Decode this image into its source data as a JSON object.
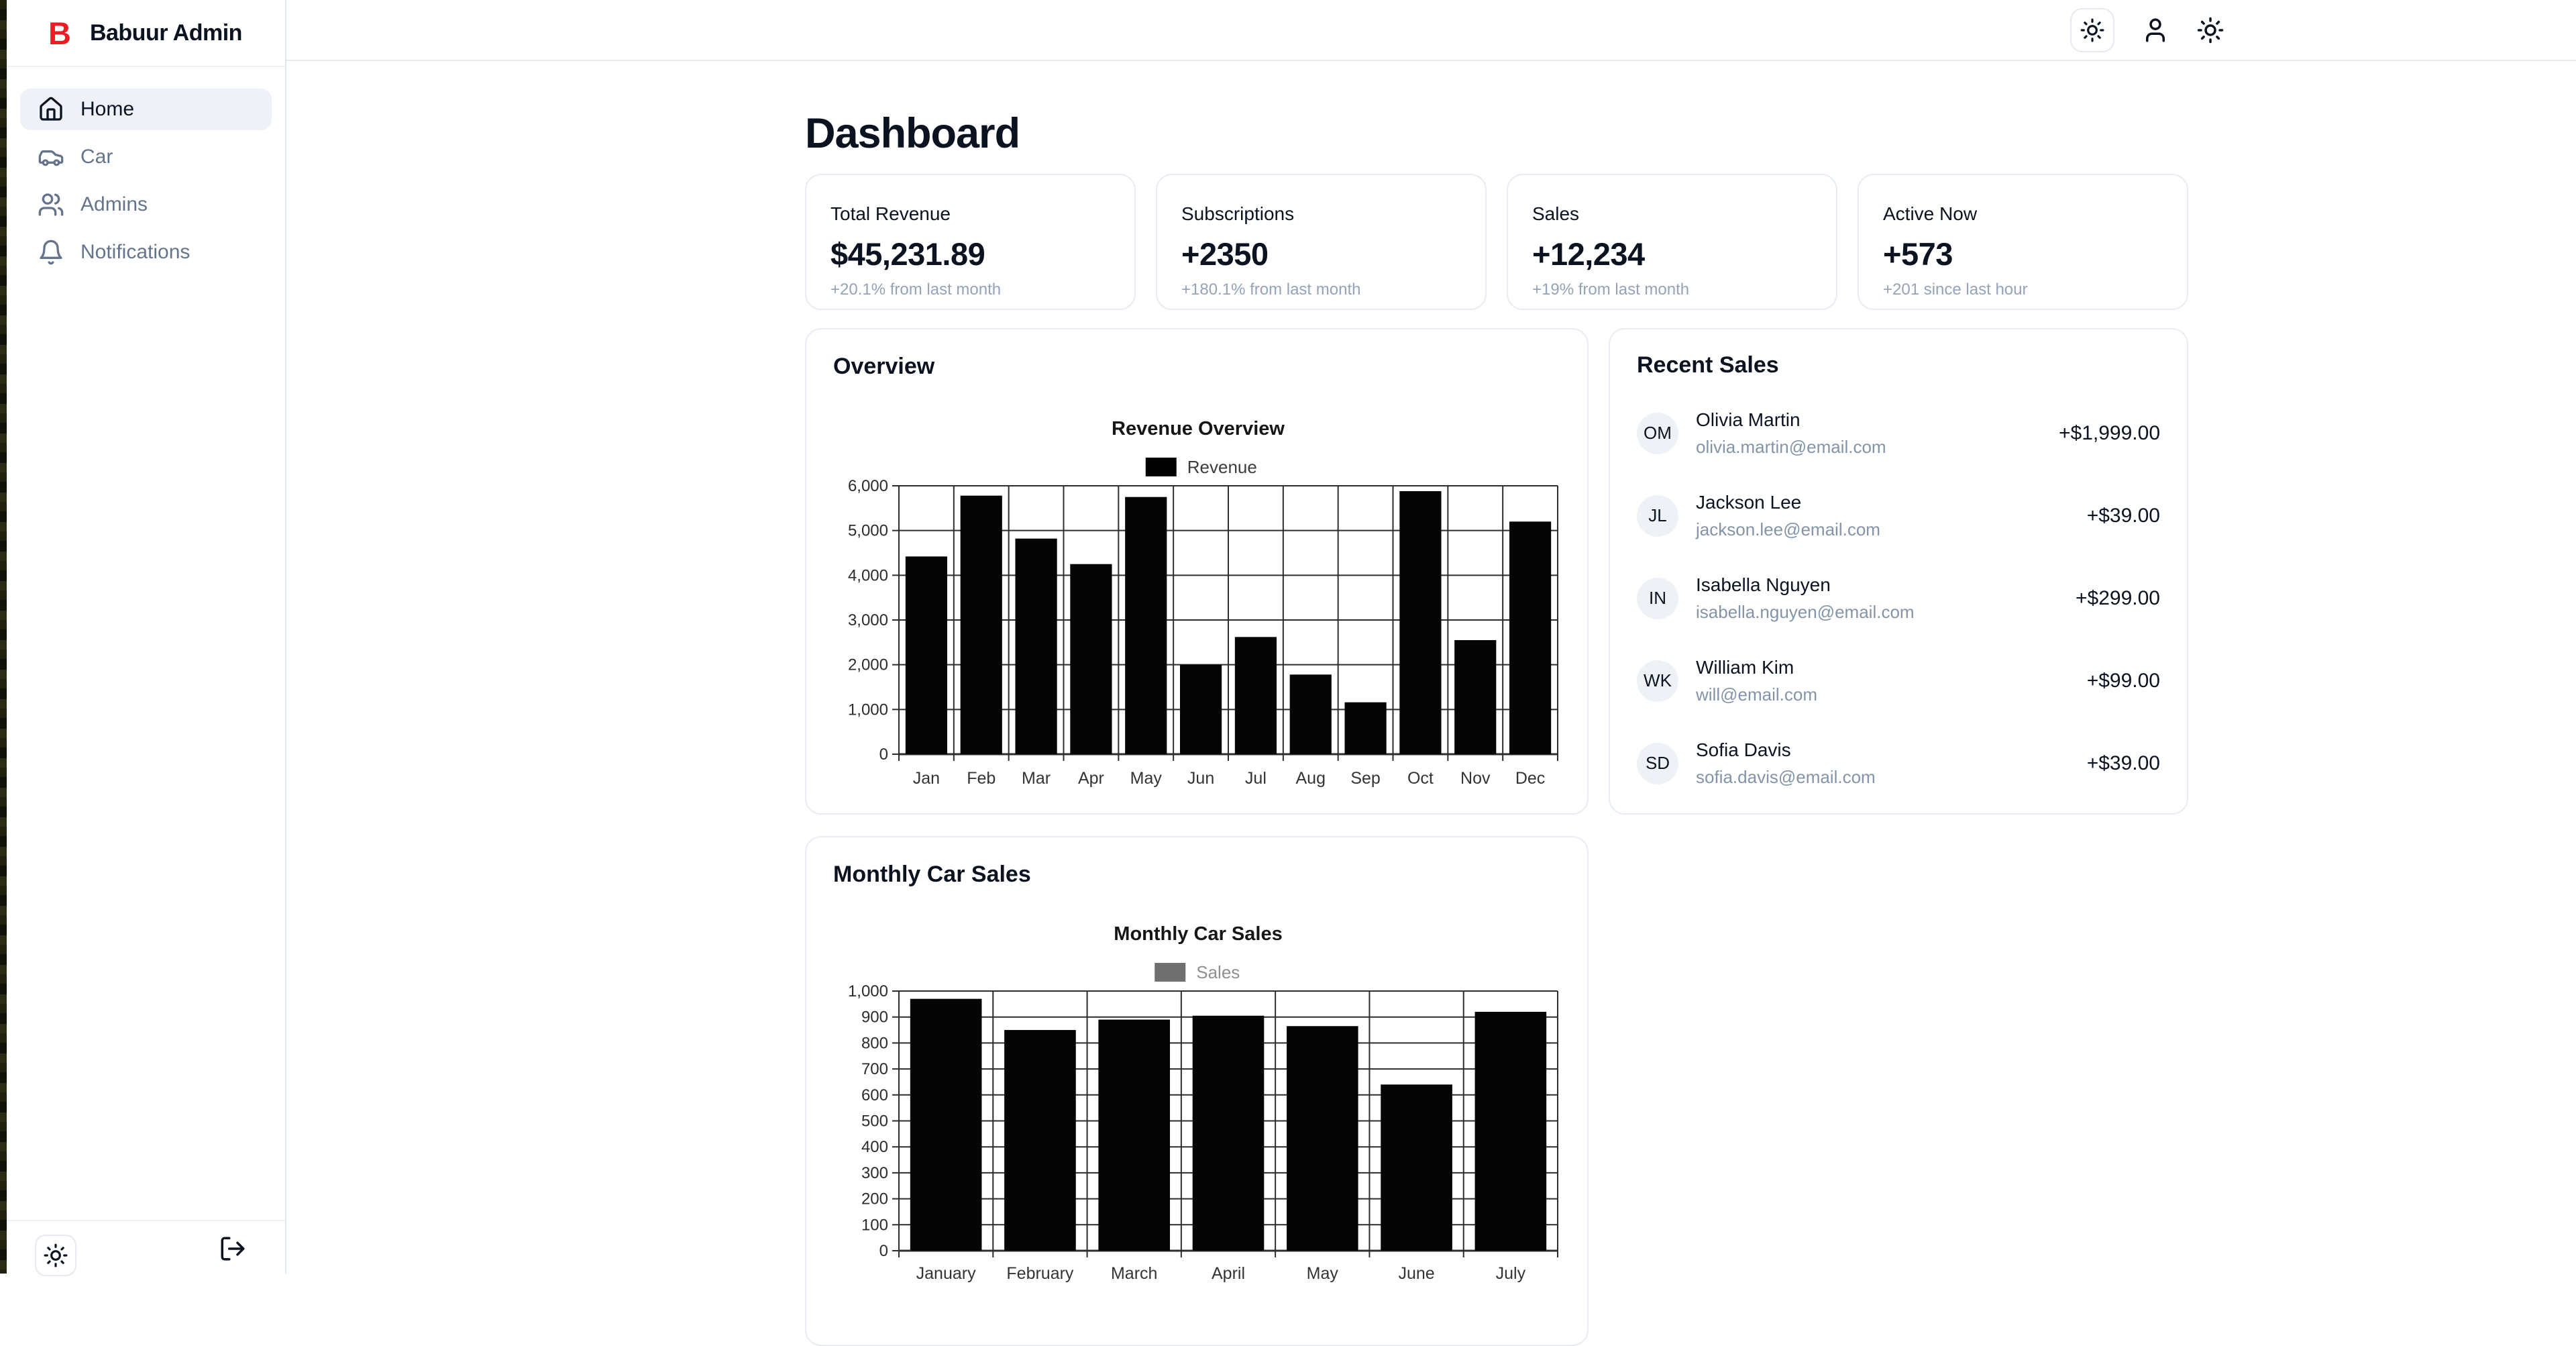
{
  "brand": {
    "logo_letter": "B",
    "name": "Babuur Admin"
  },
  "header": {
    "icons": [
      {
        "name": "sun-icon",
        "type": "theme-toggle-button"
      },
      {
        "name": "user-icon",
        "type": "profile-button"
      },
      {
        "name": "sun-icon",
        "type": "theme-button"
      }
    ]
  },
  "sidebar": {
    "items": [
      {
        "label": "Home",
        "icon": "home-icon",
        "active": true
      },
      {
        "label": "Car",
        "icon": "car-icon",
        "active": false
      },
      {
        "label": "Admins",
        "icon": "users-icon",
        "active": false
      },
      {
        "label": "Notifications",
        "icon": "bell-icon",
        "active": false
      }
    ],
    "footer": {
      "theme_icon": "sun-icon",
      "logout_icon": "log-out-icon"
    }
  },
  "main": {
    "title": "Dashboard",
    "stats": [
      {
        "label": "Total Revenue",
        "value": "$45,231.89",
        "desc": "+20.1% from last month"
      },
      {
        "label": "Subscriptions",
        "value": "+2350",
        "desc": "+180.1% from last month"
      },
      {
        "label": "Sales",
        "value": "+12,234",
        "desc": "+19% from last month"
      },
      {
        "label": "Active Now",
        "value": "+573",
        "desc": "+201 since last hour"
      }
    ],
    "overview": {
      "title": "Overview"
    },
    "recent_sales": {
      "title": "Recent Sales",
      "items": [
        {
          "initials": "OM",
          "name": "Olivia Martin",
          "email": "olivia.martin@email.com",
          "amount": "+$1,999.00"
        },
        {
          "initials": "JL",
          "name": "Jackson Lee",
          "email": "jackson.lee@email.com",
          "amount": "+$39.00"
        },
        {
          "initials": "IN",
          "name": "Isabella Nguyen",
          "email": "isabella.nguyen@email.com",
          "amount": "+$299.00"
        },
        {
          "initials": "WK",
          "name": "William Kim",
          "email": "will@email.com",
          "amount": "+$99.00"
        },
        {
          "initials": "SD",
          "name": "Sofia Davis",
          "email": "sofia.davis@email.com",
          "amount": "+$39.00"
        }
      ]
    },
    "car_sales": {
      "title": "Monthly Car Sales"
    }
  },
  "chart_data": [
    {
      "type": "bar",
      "title": "Revenue Overview",
      "legend": "Revenue",
      "legend_position": "top",
      "categories": [
        "Jan",
        "Feb",
        "Mar",
        "Apr",
        "May",
        "Jun",
        "Jul",
        "Aug",
        "Sep",
        "Oct",
        "Nov",
        "Dec"
      ],
      "values": [
        4420,
        5780,
        4820,
        4250,
        5750,
        2000,
        2620,
        1780,
        1160,
        5880,
        2550,
        5200
      ],
      "ylim": [
        0,
        6000
      ],
      "ystep": 1000,
      "grid": true,
      "bar_color": "#050505",
      "legend_swatch": "#000000",
      "legend_text_color": "#3c3c3c"
    },
    {
      "type": "bar",
      "title": "Monthly Car Sales",
      "legend": "Sales",
      "legend_position": "top",
      "categories": [
        "January",
        "February",
        "March",
        "April",
        "May",
        "June",
        "July"
      ],
      "values": [
        970,
        850,
        890,
        905,
        865,
        640,
        920
      ],
      "ylim": [
        0,
        1000
      ],
      "ystep": 100,
      "grid": true,
      "bar_color": "#050505",
      "legend_swatch": "#6f6f6f",
      "legend_text_color": "#8f8f8f"
    }
  ],
  "colors": {
    "accent": "#ed1c24",
    "text": "#0b1220",
    "muted": "#94a3b8",
    "email": "#8494a8",
    "border": "#e2e8f0",
    "soft_border": "#e8edf3",
    "avatar_bg": "#eef2f7",
    "active_bg": "#eef2f8"
  }
}
